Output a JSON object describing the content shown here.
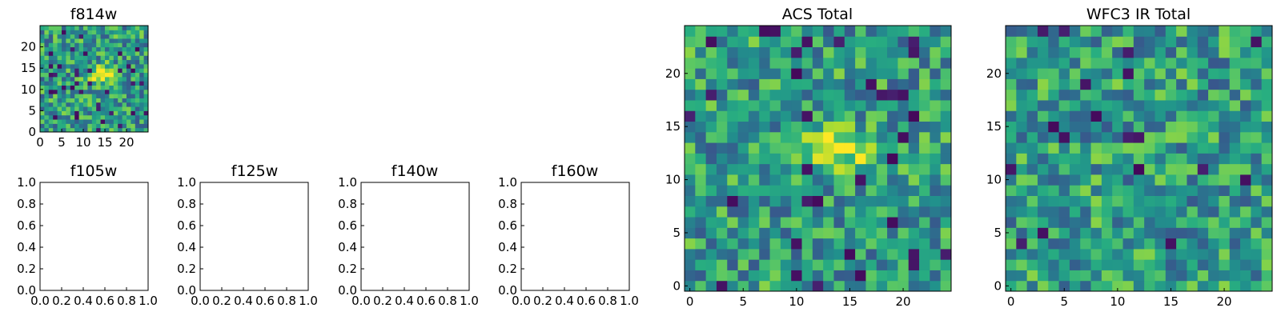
{
  "colormap": "viridis",
  "colors": {
    "low": "#440154",
    "mid": "#21918c",
    "high": "#fde725",
    "frame": "#000000"
  },
  "chart_data": [
    {
      "id": "f814w",
      "type": "heatmap",
      "title": "f814w",
      "xlim": [
        0,
        25
      ],
      "ylim": [
        0,
        25
      ],
      "xticks": [
        "0",
        "5",
        "10",
        "15",
        "20"
      ],
      "yticks": [
        "0",
        "5",
        "10",
        "15",
        "20"
      ],
      "grid_size": [
        25,
        25
      ],
      "feature": "bright diagonal source near x=14, y=13"
    },
    {
      "id": "f105w",
      "type": "heatmap",
      "title": "f105w",
      "xlim": [
        0,
        1
      ],
      "ylim": [
        0,
        1
      ],
      "xticks": [
        "0.0",
        "0.2",
        "0.4",
        "0.6",
        "0.8",
        "1.0"
      ],
      "yticks": [
        "0.0",
        "0.2",
        "0.4",
        "0.6",
        "0.8",
        "1.0"
      ],
      "empty": true
    },
    {
      "id": "f125w",
      "type": "heatmap",
      "title": "f125w",
      "xlim": [
        0,
        1
      ],
      "ylim": [
        0,
        1
      ],
      "xticks": [
        "0.0",
        "0.2",
        "0.4",
        "0.6",
        "0.8",
        "1.0"
      ],
      "yticks": [
        "0.0",
        "0.2",
        "0.4",
        "0.6",
        "0.8",
        "1.0"
      ],
      "empty": true
    },
    {
      "id": "f140w",
      "type": "heatmap",
      "title": "f140w",
      "xlim": [
        0,
        1
      ],
      "ylim": [
        0,
        1
      ],
      "xticks": [
        "0.0",
        "0.2",
        "0.4",
        "0.6",
        "0.8",
        "1.0"
      ],
      "yticks": [
        "0.0",
        "0.2",
        "0.4",
        "0.6",
        "0.8",
        "1.0"
      ],
      "empty": true
    },
    {
      "id": "f160w",
      "type": "heatmap",
      "title": "f160w",
      "xlim": [
        0,
        1
      ],
      "ylim": [
        0,
        1
      ],
      "xticks": [
        "0.0",
        "0.2",
        "0.4",
        "0.6",
        "0.8",
        "1.0"
      ],
      "yticks": [
        "0.0",
        "0.2",
        "0.4",
        "0.6",
        "0.8",
        "1.0"
      ],
      "empty": true
    },
    {
      "id": "acs-total",
      "type": "heatmap",
      "title": "ACS Total",
      "xlim": [
        -0.5,
        24.5
      ],
      "ylim": [
        -0.5,
        24.5
      ],
      "xticks": [
        "0",
        "5",
        "10",
        "15",
        "20"
      ],
      "yticks": [
        "0",
        "5",
        "10",
        "15",
        "20"
      ],
      "grid_size": [
        25,
        25
      ],
      "feature": "bright source near x=14, y=13"
    },
    {
      "id": "wfc3-ir-total",
      "type": "heatmap",
      "title": "WFC3 IR Total",
      "xlim": [
        -0.5,
        24.5
      ],
      "ylim": [
        -0.5,
        24.5
      ],
      "xticks": [
        "0",
        "5",
        "10",
        "15",
        "20"
      ],
      "yticks": [
        "0",
        "5",
        "10",
        "15",
        "20"
      ],
      "grid_size": [
        25,
        25
      ],
      "feature": "noisy field, no clear source"
    }
  ]
}
